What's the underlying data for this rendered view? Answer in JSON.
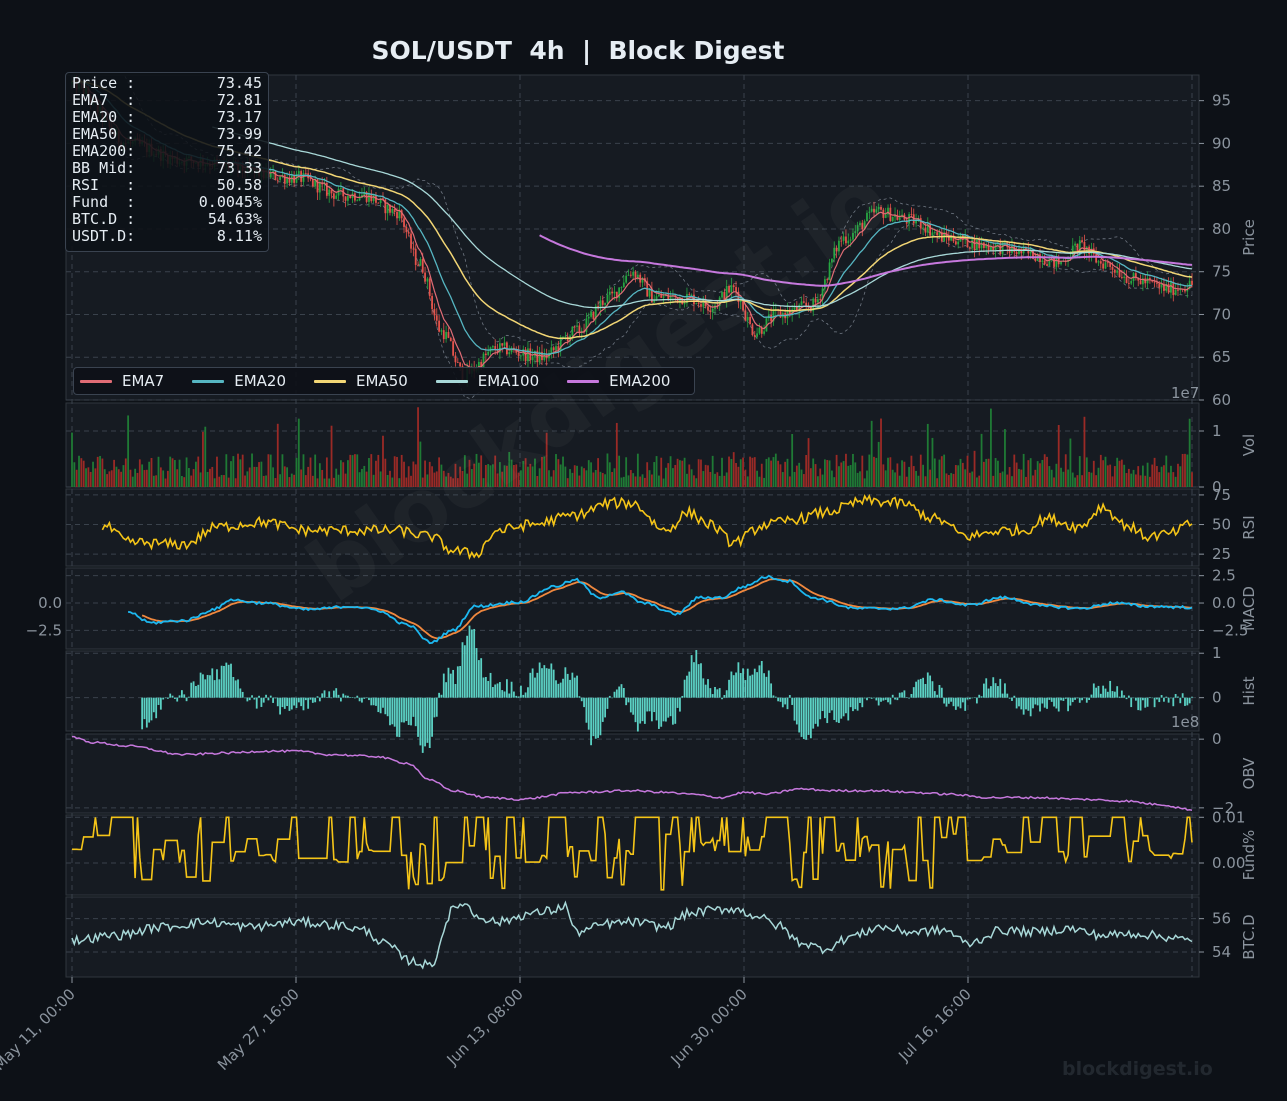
{
  "title": "SOL/USDT  4h  |  Block Digest",
  "info_box": [
    {
      "label": "Price :",
      "value": "73.45"
    },
    {
      "label": "EMA7  :",
      "value": "72.81"
    },
    {
      "label": "EMA20 :",
      "value": "73.17"
    },
    {
      "label": "EMA50 :",
      "value": "73.99"
    },
    {
      "label": "EMA200:",
      "value": "75.42"
    },
    {
      "label": "BB Mid:",
      "value": "73.33"
    },
    {
      "label": "RSI   :",
      "value": "50.58"
    },
    {
      "label": "Fund  :",
      "value": "0.0045%"
    },
    {
      "label": "BTC.D :",
      "value": "54.63%"
    },
    {
      "label": "USDT.D:",
      "value": "8.11%"
    }
  ],
  "legend": [
    {
      "name": "EMA7",
      "color": "#e06c75"
    },
    {
      "name": "EMA20",
      "color": "#56b6c2"
    },
    {
      "name": "EMA50",
      "color": "#f2d675"
    },
    {
      "name": "EMA100",
      "color": "#a8d8d8"
    },
    {
      "name": "EMA200",
      "color": "#c678dd"
    }
  ],
  "footer_watermark": "blockdigest.io",
  "diagonal_watermark": "blockdigest.io",
  "chart_data": {
    "type": "line",
    "x_ticks": [
      "May 11, 00:00",
      "May 27, 16:00",
      "Jun 13, 08:00",
      "Jun 30, 00:00",
      "Jul 16, 16:00"
    ],
    "x_range": [
      "May 11, 00:00",
      "Aug 02, 00:00"
    ],
    "colors": {
      "up": "#26a641",
      "down": "#e5534b",
      "rsi": "#f5c518",
      "macd": "#1db8f0",
      "signal": "#f0883e",
      "hist": "#5bd1c4",
      "obv": "#c678dd",
      "fund": "#f5c518",
      "btcd": "#a8d8d8"
    },
    "panels": [
      {
        "id": "price",
        "ylabel": "Price",
        "yticks": [
          60,
          65,
          70,
          75,
          80,
          85,
          90,
          95
        ],
        "ylim": [
          60,
          98
        ],
        "grid": true,
        "series": [
          "candles",
          "EMA7",
          "EMA20",
          "EMA50",
          "EMA100",
          "EMA200",
          "BB upper",
          "BB lower"
        ],
        "anchors": [
          [
            0,
            97
          ],
          [
            0.05,
            90
          ],
          [
            0.1,
            88
          ],
          [
            0.2,
            86
          ],
          [
            0.24,
            84
          ],
          [
            0.26,
            84
          ],
          [
            0.29,
            82
          ],
          [
            0.31,
            76
          ],
          [
            0.33,
            68
          ],
          [
            0.35,
            63
          ],
          [
            0.38,
            66
          ],
          [
            0.42,
            65
          ],
          [
            0.45,
            68
          ],
          [
            0.48,
            72
          ],
          [
            0.5,
            75
          ],
          [
            0.52,
            72
          ],
          [
            0.55,
            72
          ],
          [
            0.57,
            71
          ],
          [
            0.59,
            73
          ],
          [
            0.61,
            68
          ],
          [
            0.63,
            70
          ],
          [
            0.66,
            71
          ],
          [
            0.69,
            79
          ],
          [
            0.72,
            82
          ],
          [
            0.75,
            81
          ],
          [
            0.78,
            79
          ],
          [
            0.82,
            78
          ],
          [
            0.86,
            77
          ],
          [
            0.88,
            76
          ],
          [
            0.9,
            78
          ],
          [
            0.92,
            76
          ],
          [
            0.95,
            74
          ],
          [
            0.98,
            73
          ],
          [
            1.0,
            73.45
          ]
        ],
        "last": {
          "close": 73.45,
          "ema7": 72.81,
          "ema20": 73.17,
          "ema50": 73.99,
          "ema200": 75.42,
          "bb_mid": 73.33
        }
      },
      {
        "id": "vol",
        "ylabel": "Vol",
        "offset_label": "1e7",
        "yticks": [
          0,
          1
        ],
        "ylim": [
          0,
          1.5
        ],
        "grid": true
      },
      {
        "id": "rsi",
        "ylabel": "RSI",
        "yticks": [
          25,
          50,
          75
        ],
        "ylim": [
          15,
          80
        ],
        "grid": true,
        "last": 50.58,
        "anchors": [
          [
            0.03,
            48
          ],
          [
            0.05,
            35
          ],
          [
            0.1,
            33
          ],
          [
            0.13,
            48
          ],
          [
            0.17,
            52
          ],
          [
            0.21,
            45
          ],
          [
            0.25,
            45
          ],
          [
            0.29,
            45
          ],
          [
            0.32,
            40
          ],
          [
            0.34,
            28
          ],
          [
            0.36,
            25
          ],
          [
            0.38,
            45
          ],
          [
            0.41,
            50
          ],
          [
            0.45,
            58
          ],
          [
            0.48,
            68
          ],
          [
            0.5,
            68
          ],
          [
            0.53,
            45
          ],
          [
            0.55,
            60
          ],
          [
            0.57,
            50
          ],
          [
            0.59,
            35
          ],
          [
            0.62,
            50
          ],
          [
            0.65,
            55
          ],
          [
            0.67,
            60
          ],
          [
            0.71,
            70
          ],
          [
            0.74,
            68
          ],
          [
            0.77,
            55
          ],
          [
            0.8,
            40
          ],
          [
            0.83,
            45
          ],
          [
            0.85,
            45
          ],
          [
            0.87,
            55
          ],
          [
            0.9,
            48
          ],
          [
            0.92,
            65
          ],
          [
            0.94,
            50
          ],
          [
            0.96,
            40
          ],
          [
            0.98,
            42
          ],
          [
            1.0,
            50.58
          ]
        ]
      },
      {
        "id": "macd",
        "ylabel": "MACD",
        "yticks": [
          -2.5,
          0.0,
          2.5
        ],
        "ylim": [
          -4.2,
          3.2
        ],
        "grid": true,
        "anchors": [
          [
            0.05,
            -0.8
          ],
          [
            0.07,
            -1.8
          ],
          [
            0.1,
            -1.6
          ],
          [
            0.13,
            -0.5
          ],
          [
            0.14,
            0.3
          ],
          [
            0.17,
            0.0
          ],
          [
            0.21,
            -0.6
          ],
          [
            0.25,
            -0.3
          ],
          [
            0.27,
            -0.6
          ],
          [
            0.3,
            -2.0
          ],
          [
            0.32,
            -3.6
          ],
          [
            0.34,
            -2.5
          ],
          [
            0.36,
            -0.3
          ],
          [
            0.4,
            0.1
          ],
          [
            0.43,
            1.5
          ],
          [
            0.45,
            2.1
          ],
          [
            0.47,
            0.5
          ],
          [
            0.49,
            1.0
          ],
          [
            0.51,
            0.0
          ],
          [
            0.54,
            -1.0
          ],
          [
            0.56,
            0.5
          ],
          [
            0.58,
            0.5
          ],
          [
            0.6,
            1.5
          ],
          [
            0.62,
            2.4
          ],
          [
            0.64,
            2.0
          ],
          [
            0.66,
            0.5
          ],
          [
            0.7,
            -0.5
          ],
          [
            0.74,
            -0.5
          ],
          [
            0.77,
            0.3
          ],
          [
            0.8,
            -0.2
          ],
          [
            0.83,
            0.5
          ],
          [
            0.87,
            -0.3
          ],
          [
            0.9,
            -0.5
          ],
          [
            0.93,
            0.0
          ],
          [
            0.96,
            -0.3
          ],
          [
            1.0,
            -0.4
          ]
        ]
      },
      {
        "id": "hist",
        "ylabel": "Hist",
        "yticks": [
          0,
          1
        ],
        "ylim": [
          -0.75,
          1.05
        ],
        "grid": true
      },
      {
        "id": "obv",
        "ylabel": "OBV",
        "offset_label": "1e8",
        "yticks": [
          -2,
          0
        ],
        "ylim": [
          -2.15,
          0.15
        ],
        "grid": true,
        "anchors": [
          [
            0,
            0.05
          ],
          [
            0.02,
            -0.1
          ],
          [
            0.05,
            -0.2
          ],
          [
            0.1,
            -0.45
          ],
          [
            0.14,
            -0.4
          ],
          [
            0.17,
            -0.35
          ],
          [
            0.2,
            -0.35
          ],
          [
            0.23,
            -0.45
          ],
          [
            0.27,
            -0.5
          ],
          [
            0.3,
            -0.7
          ],
          [
            0.32,
            -1.2
          ],
          [
            0.34,
            -1.5
          ],
          [
            0.37,
            -1.7
          ],
          [
            0.4,
            -1.75
          ],
          [
            0.45,
            -1.55
          ],
          [
            0.5,
            -1.5
          ],
          [
            0.53,
            -1.55
          ],
          [
            0.55,
            -1.6
          ],
          [
            0.58,
            -1.7
          ],
          [
            0.6,
            -1.55
          ],
          [
            0.62,
            -1.6
          ],
          [
            0.65,
            -1.45
          ],
          [
            0.68,
            -1.5
          ],
          [
            0.72,
            -1.5
          ],
          [
            0.75,
            -1.55
          ],
          [
            0.78,
            -1.6
          ],
          [
            0.82,
            -1.7
          ],
          [
            0.86,
            -1.7
          ],
          [
            0.9,
            -1.75
          ],
          [
            0.94,
            -1.8
          ],
          [
            0.97,
            -1.9
          ],
          [
            1.0,
            -2.05
          ]
        ]
      },
      {
        "id": "fund",
        "ylabel": "Fund%",
        "yticks": [
          0.0,
          0.01
        ],
        "ylim": [
          -0.007,
          0.0105
        ],
        "grid": true,
        "last": 0.0045
      },
      {
        "id": "btcd",
        "ylabel": "BTC.D",
        "yticks": [
          54,
          56
        ],
        "ylim": [
          52.5,
          57.3
        ],
        "grid": true,
        "last": 54.63,
        "anchors": [
          [
            0,
            54.7
          ],
          [
            0.04,
            55.0
          ],
          [
            0.08,
            55.5
          ],
          [
            0.12,
            55.8
          ],
          [
            0.16,
            55.5
          ],
          [
            0.2,
            55.8
          ],
          [
            0.24,
            55.6
          ],
          [
            0.26,
            55.3
          ],
          [
            0.28,
            54.5
          ],
          [
            0.3,
            53.5
          ],
          [
            0.32,
            53.2
          ],
          [
            0.34,
            56.5
          ],
          [
            0.35,
            57.0
          ],
          [
            0.36,
            56.2
          ],
          [
            0.38,
            55.8
          ],
          [
            0.41,
            56.3
          ],
          [
            0.43,
            56.5
          ],
          [
            0.44,
            56.8
          ],
          [
            0.45,
            55.2
          ],
          [
            0.48,
            55.7
          ],
          [
            0.5,
            55.8
          ],
          [
            0.53,
            55.5
          ],
          [
            0.55,
            56.3
          ],
          [
            0.57,
            56.5
          ],
          [
            0.59,
            56.6
          ],
          [
            0.61,
            56.2
          ],
          [
            0.63,
            55.6
          ],
          [
            0.65,
            54.6
          ],
          [
            0.67,
            54.2
          ],
          [
            0.7,
            55.0
          ],
          [
            0.72,
            55.5
          ],
          [
            0.75,
            55.2
          ],
          [
            0.78,
            55.3
          ],
          [
            0.8,
            54.5
          ],
          [
            0.83,
            55.3
          ],
          [
            0.86,
            55.2
          ],
          [
            0.89,
            55.4
          ],
          [
            0.92,
            55.0
          ],
          [
            0.95,
            55.1
          ],
          [
            0.98,
            54.9
          ],
          [
            1.0,
            54.63
          ]
        ]
      }
    ]
  }
}
